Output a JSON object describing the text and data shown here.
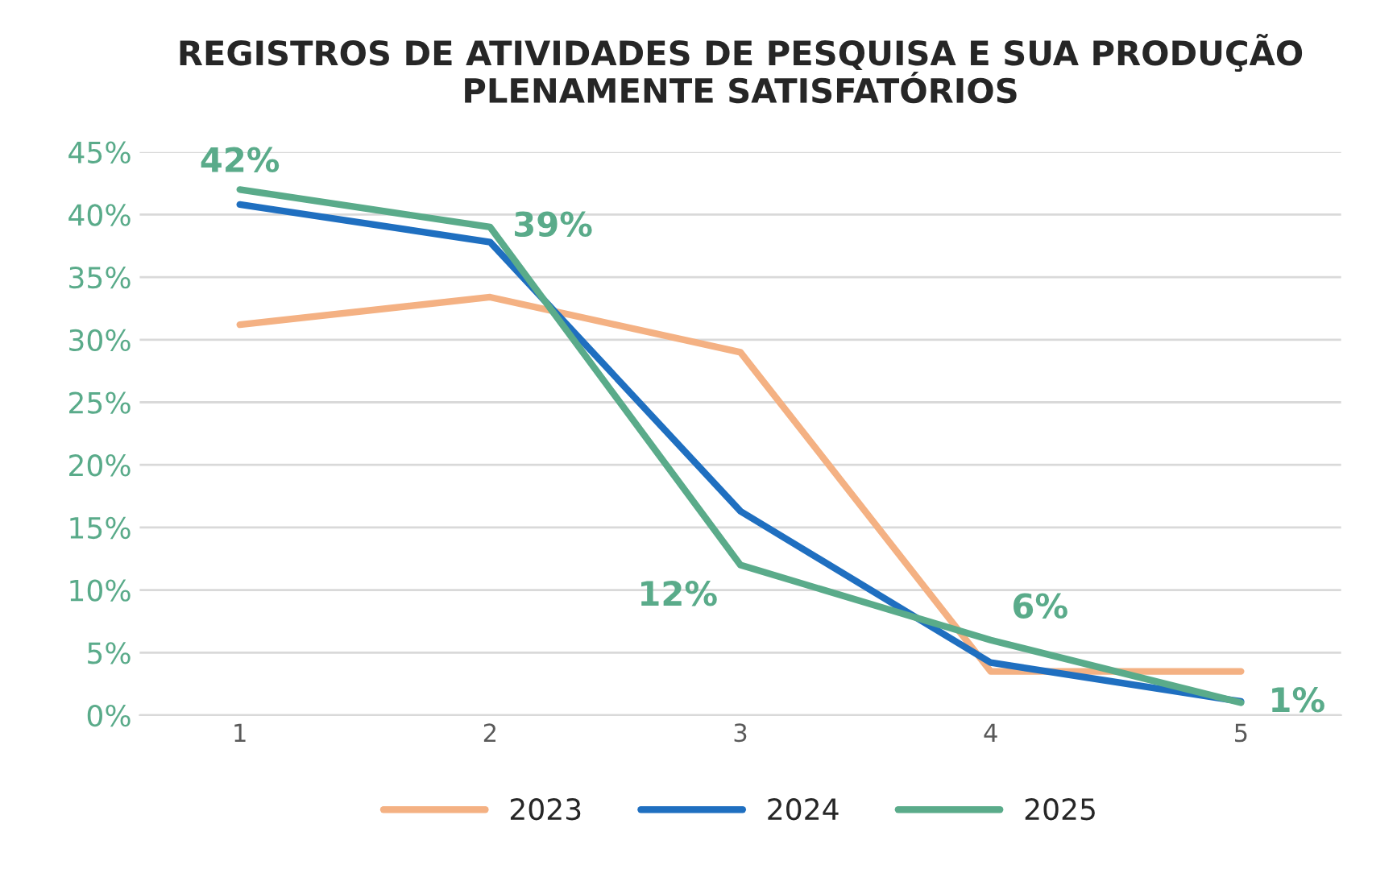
{
  "chart_data": {
    "type": "line",
    "title": "REGISTROS DE ATIVIDADES DE PESQUISA E SUA PRODUÇÃO\nPLENAMENTE SATISFATÓRIOS",
    "categories": [
      "1",
      "2",
      "3",
      "4",
      "5"
    ],
    "series": [
      {
        "name": "2023",
        "color": "#f4b183",
        "values": [
          31.2,
          33.4,
          29.0,
          3.5,
          3.5
        ]
      },
      {
        "name": "2024",
        "color": "#1f6fc0",
        "values": [
          40.8,
          37.8,
          16.3,
          4.2,
          1.1
        ]
      },
      {
        "name": "2025",
        "color": "#5aab8a",
        "values": [
          42,
          39,
          12,
          6,
          1
        ],
        "value_labels": [
          "42%",
          "39%",
          "12%",
          "6%",
          "1%"
        ]
      }
    ],
    "ylim": [
      0,
      45
    ],
    "yticks": [
      {
        "value": 0,
        "label": "0%"
      },
      {
        "value": 5,
        "label": "5%"
      },
      {
        "value": 10,
        "label": "10%"
      },
      {
        "value": 15,
        "label": "15%"
      },
      {
        "value": 20,
        "label": "20%"
      },
      {
        "value": 25,
        "label": "25%"
      },
      {
        "value": 30,
        "label": "30%"
      },
      {
        "value": 35,
        "label": "35%"
      },
      {
        "value": 40,
        "label": "40%"
      },
      {
        "value": 45,
        "label": "45%"
      }
    ],
    "grid": "y",
    "legend": "bottom",
    "marker": "none",
    "line_style": "solid"
  }
}
